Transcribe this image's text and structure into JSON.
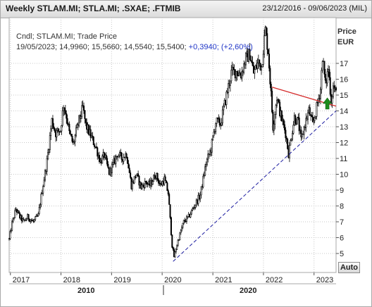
{
  "header": {
    "title": "Weekly STLAM.MI; STLA.MI; .SXAE; .FTMIB",
    "date_range": "23/12/2016 - 09/06/2023 (MIL)"
  },
  "legend": {
    "line1": "Cndl; STLAM.MI; Trade Price",
    "line2_values": "19/05/2023; 14,9960; 15,5660; 14,5540; 15,5400;",
    "line2_change": "+0,3940; (+2,60%)"
  },
  "axis": {
    "unit_title": "Price",
    "unit_currency": "EUR",
    "auto_label": "Auto",
    "y_ticks": [
      "5",
      "6",
      "7",
      "8",
      "9",
      "10",
      "11",
      "12",
      "13",
      "14",
      "15",
      "16",
      "17"
    ],
    "x_year_ticks": [
      "2017",
      "2018",
      "2019",
      "2020",
      "2021",
      "2022",
      "2023"
    ],
    "x_decade_ticks": [
      "2010",
      "2020"
    ]
  },
  "colors": {
    "candles": "#000000",
    "resistance_line": "#d42a2a",
    "support_line": "#1c1ca0",
    "arrow": "#1c8c1c",
    "grid": "#c8c8c8"
  },
  "chart_data": {
    "type": "candlestick",
    "series": [
      {
        "name": "STLAM.MI",
        "frequency": "weekly"
      }
    ],
    "x_range": [
      "2016-12-23",
      "2023-06-09"
    ],
    "y_range": [
      4.2,
      19.6
    ],
    "last_candle": {
      "date": "2023-05-19",
      "open": 14.996,
      "high": 15.566,
      "low": 14.554,
      "close": 15.54,
      "change": 0.394,
      "change_pct": 2.6
    },
    "price_path": [
      [
        "2016-12-23",
        5.9
      ],
      [
        "2017-01-13",
        6.9
      ],
      [
        "2017-02-10",
        7.8
      ],
      [
        "2017-03-10",
        7.3
      ],
      [
        "2017-04-07",
        7.0
      ],
      [
        "2017-05-05",
        7.3
      ],
      [
        "2017-06-16",
        7.0
      ],
      [
        "2017-07-21",
        7.4
      ],
      [
        "2017-08-18",
        9.0
      ],
      [
        "2017-09-22",
        10.8
      ],
      [
        "2017-10-27",
        13.4
      ],
      [
        "2017-11-24",
        12.6
      ],
      [
        "2017-12-29",
        12.8
      ],
      [
        "2018-01-19",
        14.4
      ],
      [
        "2018-02-09",
        13.7
      ],
      [
        "2018-03-02",
        12.6
      ],
      [
        "2018-03-30",
        11.9
      ],
      [
        "2018-05-11",
        13.4
      ],
      [
        "2018-06-08",
        14.2
      ],
      [
        "2018-06-29",
        13.1
      ],
      [
        "2018-08-10",
        12.3
      ],
      [
        "2018-09-14",
        11.6
      ],
      [
        "2018-10-12",
        10.8
      ],
      [
        "2018-11-09",
        11.2
      ],
      [
        "2018-12-14",
        10.1
      ],
      [
        "2019-01-11",
        10.6
      ],
      [
        "2019-02-15",
        11.3
      ],
      [
        "2019-03-15",
        11.0
      ],
      [
        "2019-04-19",
        11.3
      ],
      [
        "2019-05-24",
        9.3
      ],
      [
        "2019-06-28",
        10.0
      ],
      [
        "2019-08-02",
        9.2
      ],
      [
        "2019-09-06",
        9.5
      ],
      [
        "2019-10-04",
        9.3
      ],
      [
        "2019-11-15",
        10.0
      ],
      [
        "2019-12-20",
        9.3
      ],
      [
        "2020-01-17",
        9.7
      ],
      [
        "2020-02-14",
        8.8
      ],
      [
        "2020-03-13",
        5.5
      ],
      [
        "2020-03-27",
        4.8
      ],
      [
        "2020-04-24",
        5.8
      ],
      [
        "2020-06-05",
        7.0
      ],
      [
        "2020-07-10",
        7.3
      ],
      [
        "2020-08-14",
        7.9
      ],
      [
        "2020-10-02",
        8.7
      ],
      [
        "2020-11-13",
        10.7
      ],
      [
        "2020-12-18",
        11.6
      ],
      [
        "2021-01-22",
        13.3
      ],
      [
        "2021-02-26",
        13.2
      ],
      [
        "2021-04-02",
        14.7
      ],
      [
        "2021-05-14",
        16.4
      ],
      [
        "2021-06-18",
        16.5
      ],
      [
        "2021-07-23",
        16.3
      ],
      [
        "2021-08-27",
        17.3
      ],
      [
        "2021-09-24",
        17.6
      ],
      [
        "2021-10-22",
        16.4
      ],
      [
        "2021-11-26",
        17.1
      ],
      [
        "2021-12-17",
        16.8
      ],
      [
        "2022-01-14",
        19.1
      ],
      [
        "2022-02-04",
        17.8
      ],
      [
        "2022-02-25",
        15.0
      ],
      [
        "2022-03-11",
        13.0
      ],
      [
        "2022-04-08",
        14.9
      ],
      [
        "2022-05-06",
        13.7
      ],
      [
        "2022-06-10",
        12.6
      ],
      [
        "2022-07-01",
        11.3
      ],
      [
        "2022-08-12",
        13.6
      ],
      [
        "2022-09-09",
        13.3
      ],
      [
        "2022-09-30",
        12.1
      ],
      [
        "2022-10-28",
        13.2
      ],
      [
        "2022-11-25",
        14.0
      ],
      [
        "2022-12-23",
        13.1
      ],
      [
        "2023-01-20",
        14.2
      ],
      [
        "2023-02-17",
        15.4
      ],
      [
        "2023-03-03",
        17.5
      ],
      [
        "2023-03-24",
        15.6
      ],
      [
        "2023-04-14",
        16.7
      ],
      [
        "2023-05-05",
        14.7
      ],
      [
        "2023-05-19",
        15.54
      ],
      [
        "2023-06-09",
        15.1
      ]
    ],
    "annotations": [
      {
        "type": "trendline",
        "name": "support",
        "style": "dashed",
        "from": [
          "2020-03-20",
          4.5
        ],
        "to": [
          "2023-06-09",
          14.0
        ]
      },
      {
        "type": "trendline",
        "name": "resistance",
        "style": "solid",
        "from": [
          "2022-03-04",
          15.5
        ],
        "to": [
          "2023-06-09",
          14.3
        ]
      },
      {
        "type": "arrow",
        "direction": "up",
        "at": [
          "2023-04-07",
          14.2
        ]
      }
    ],
    "xlabel": "",
    "ylabel": "",
    "y_axis_side": "right",
    "grid": true
  }
}
